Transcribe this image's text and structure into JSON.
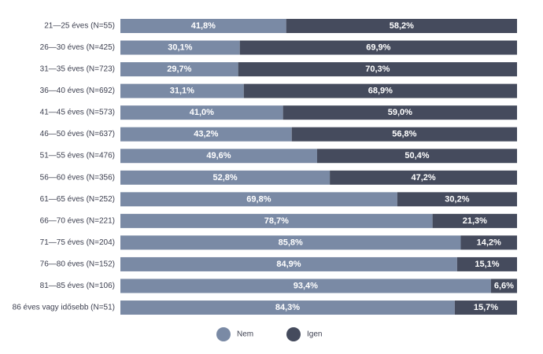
{
  "chart_data": {
    "type": "bar",
    "orientation": "horizontal",
    "stacked": true,
    "normalized_percent": true,
    "title": "",
    "xlabel": "",
    "ylabel": "",
    "xlim": [
      0,
      100
    ],
    "grid": false,
    "legend_position": "bottom",
    "categories": [
      "21—25 éves (N=55)",
      "26—30 éves (N=425)",
      "31—35 éves (N=723)",
      "36—40 éves (N=692)",
      "41—45 éves (N=573)",
      "46—50 éves (N=637)",
      "51—55 éves (N=476)",
      "56—60 éves (N=356)",
      "61—65 éves (N=252)",
      "66—70 éves (N=221)",
      "71—75 éves (N=204)",
      "76—80 éves (N=152)",
      "81—85 éves (N=106)",
      "86 éves vagy idősebb (N=51)"
    ],
    "series": [
      {
        "name": "Nem",
        "color": "#7a8aa5",
        "values": [
          41.8,
          30.1,
          29.7,
          31.1,
          41.0,
          43.2,
          49.6,
          52.8,
          69.8,
          78.7,
          85.8,
          84.9,
          93.4,
          84.3
        ],
        "labels": [
          "41,8%",
          "30,1%",
          "29,7%",
          "31,1%",
          "41,0%",
          "43,2%",
          "49,6%",
          "52,8%",
          "69,8%",
          "78,7%",
          "85,8%",
          "84,9%",
          "93,4%",
          "84,3%"
        ]
      },
      {
        "name": "Igen",
        "color": "#454b5d",
        "values": [
          58.2,
          69.9,
          70.3,
          68.9,
          59.0,
          56.8,
          50.4,
          47.2,
          30.2,
          21.3,
          14.2,
          15.1,
          6.6,
          15.7
        ],
        "labels": [
          "58,2%",
          "69,9%",
          "70,3%",
          "68,9%",
          "59,0%",
          "56,8%",
          "50,4%",
          "47,2%",
          "30,2%",
          "21,3%",
          "14,2%",
          "15,1%",
          "6,6%",
          "15,7%"
        ]
      }
    ]
  }
}
